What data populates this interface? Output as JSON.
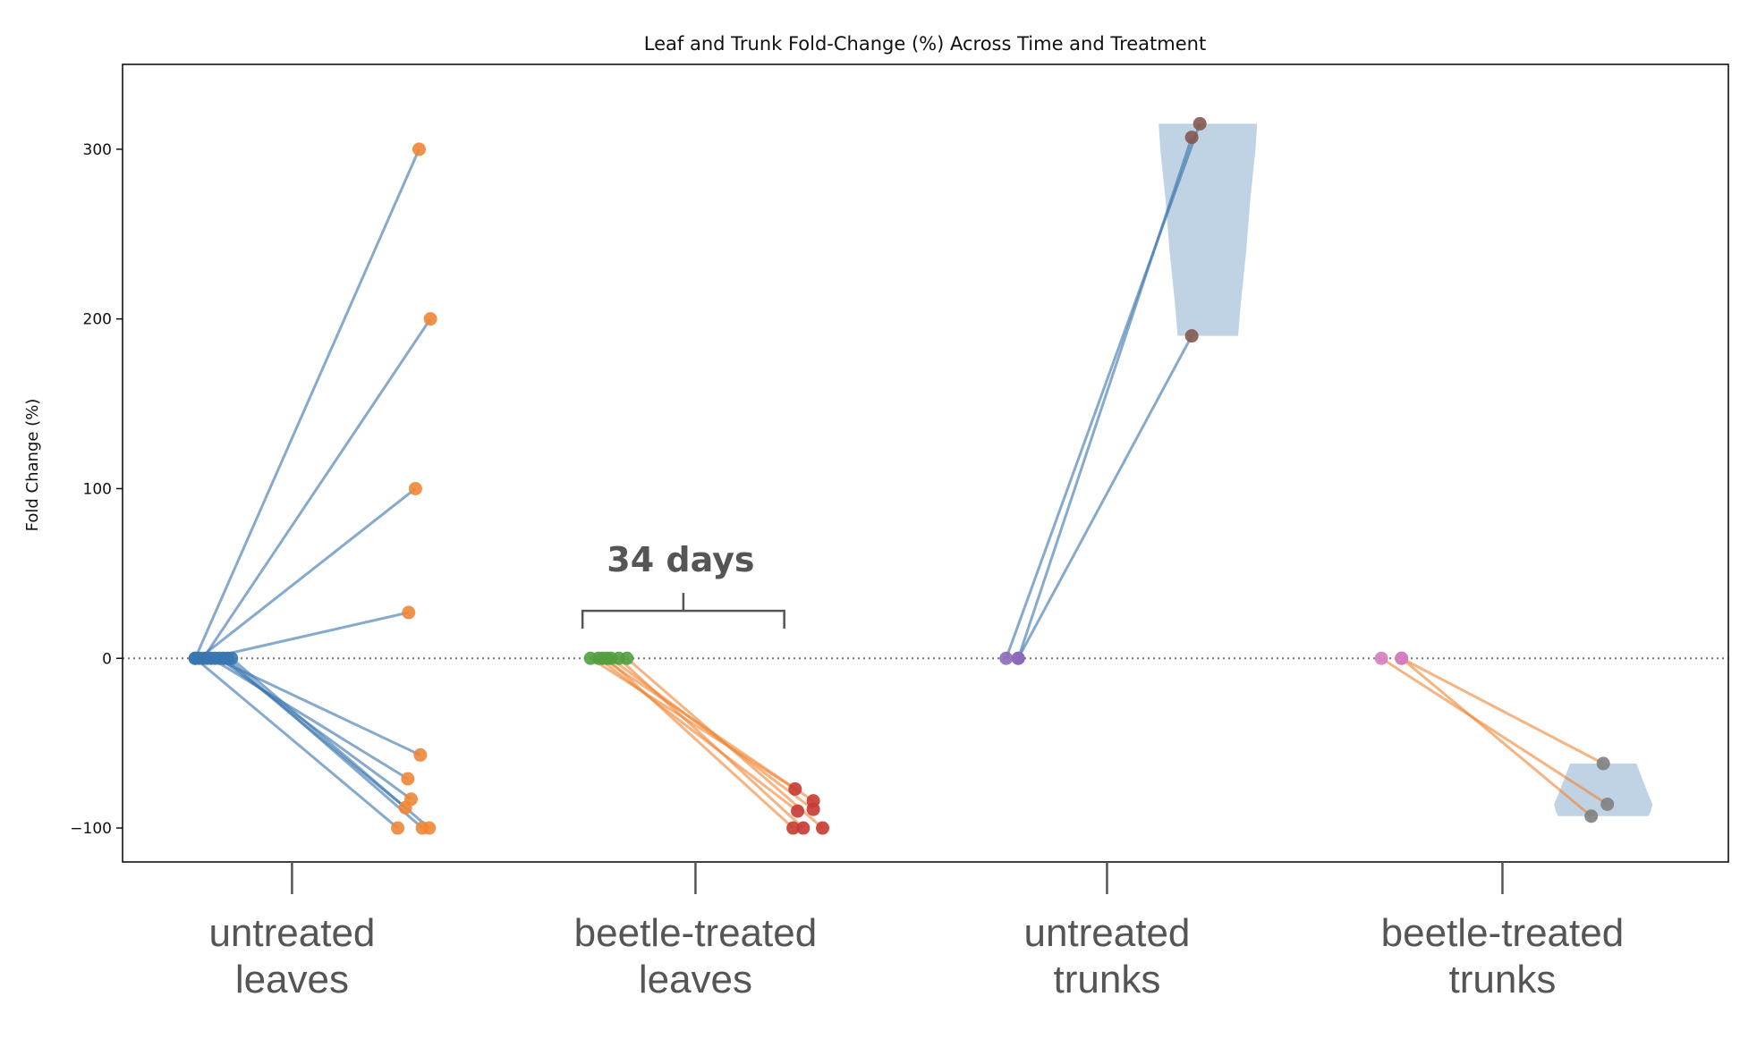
{
  "chart_data": {
    "type": "scatter",
    "title": "Leaf and Trunk Fold-Change (%) Across Time and Treatment",
    "xlabel": "",
    "ylabel": "Fold Change (%)",
    "ylim": [
      -120,
      350
    ],
    "xlim": [
      -0.42,
      3.56
    ],
    "yticks": [
      -100,
      0,
      100,
      200,
      300
    ],
    "ytick_labels": [
      "−100",
      "0",
      "100",
      "200",
      "300"
    ],
    "reference_line": {
      "y": 0,
      "style": "dotted"
    },
    "categories": [
      {
        "lines": [
          "untreated",
          "leaves"
        ],
        "position": 0
      },
      {
        "lines": [
          "beetle-treated",
          "leaves"
        ],
        "position": 1
      },
      {
        "lines": [
          "untreated",
          "trunks"
        ],
        "position": 2.02
      },
      {
        "lines": [
          "beetle-treated",
          "trunks"
        ],
        "position": 3
      }
    ],
    "annotation": {
      "text": "34 days",
      "from_x": 0.72,
      "to_x": 1.22,
      "y": 28
    },
    "groups": [
      {
        "name": "untreated leaves",
        "pre_color": "#3a76af",
        "post_color": "#ef8636",
        "line_color": "#3a76af",
        "pairs": [
          [
            -0.24,
            0,
            0.315,
            300
          ],
          [
            -0.22,
            0,
            0.343,
            200
          ],
          [
            -0.23,
            0,
            0.306,
            100
          ],
          [
            -0.21,
            0,
            0.289,
            27
          ],
          [
            -0.19,
            0,
            0.318,
            -57
          ],
          [
            -0.2,
            0,
            0.287,
            -71
          ],
          [
            -0.18,
            0,
            0.295,
            -83
          ],
          [
            -0.17,
            0,
            0.281,
            -88
          ],
          [
            -0.24,
            0,
            0.262,
            -100
          ],
          [
            -0.16,
            0,
            0.323,
            -100
          ],
          [
            -0.15,
            0,
            0.34,
            -100
          ]
        ]
      },
      {
        "name": "beetle-treated leaves",
        "pre_color": "#519e3e",
        "post_color": "#c53a32",
        "line_color": "#ef8636",
        "pairs": [
          [
            0.74,
            0,
            1.247,
            -77
          ],
          [
            0.77,
            0,
            1.292,
            -84
          ],
          [
            0.76,
            0,
            1.253,
            -90
          ],
          [
            0.79,
            0,
            1.292,
            -89
          ],
          [
            0.78,
            0,
            1.242,
            -100
          ],
          [
            0.81,
            0,
            1.267,
            -100
          ],
          [
            0.83,
            0,
            1.315,
            -100
          ]
        ]
      },
      {
        "name": "untreated trunks",
        "pre_color": "#8d69b8",
        "post_color": "#84584e",
        "line_color": "#3a76af",
        "pairs": [
          [
            1.77,
            0,
            2.25,
            315
          ],
          [
            1.8,
            0,
            2.23,
            307
          ],
          [
            1.8,
            0,
            2.23,
            190
          ]
        ],
        "violin": {
          "center": 2.27,
          "profile": [
            [
              315,
              0.122
            ],
            [
              300,
              0.118
            ],
            [
              270,
              0.105
            ],
            [
              240,
              0.095
            ],
            [
              210,
              0.082
            ],
            [
              190,
              0.075
            ]
          ]
        }
      },
      {
        "name": "beetle-treated trunks",
        "pre_color": "#d57dbf",
        "post_color": "#7f7f7f",
        "line_color": "#ef8636",
        "pairs": [
          [
            2.7,
            0,
            3.26,
            -86
          ],
          [
            2.75,
            0,
            3.25,
            -62
          ],
          [
            2.75,
            0,
            3.22,
            -93
          ]
        ],
        "violin": {
          "center": 3.25,
          "profile": [
            [
              -62,
              0.082
            ],
            [
              -70,
              0.095
            ],
            [
              -78,
              0.108
            ],
            [
              -86,
              0.122
            ],
            [
              -90,
              0.118
            ],
            [
              -93,
              0.112
            ]
          ]
        }
      }
    ]
  }
}
